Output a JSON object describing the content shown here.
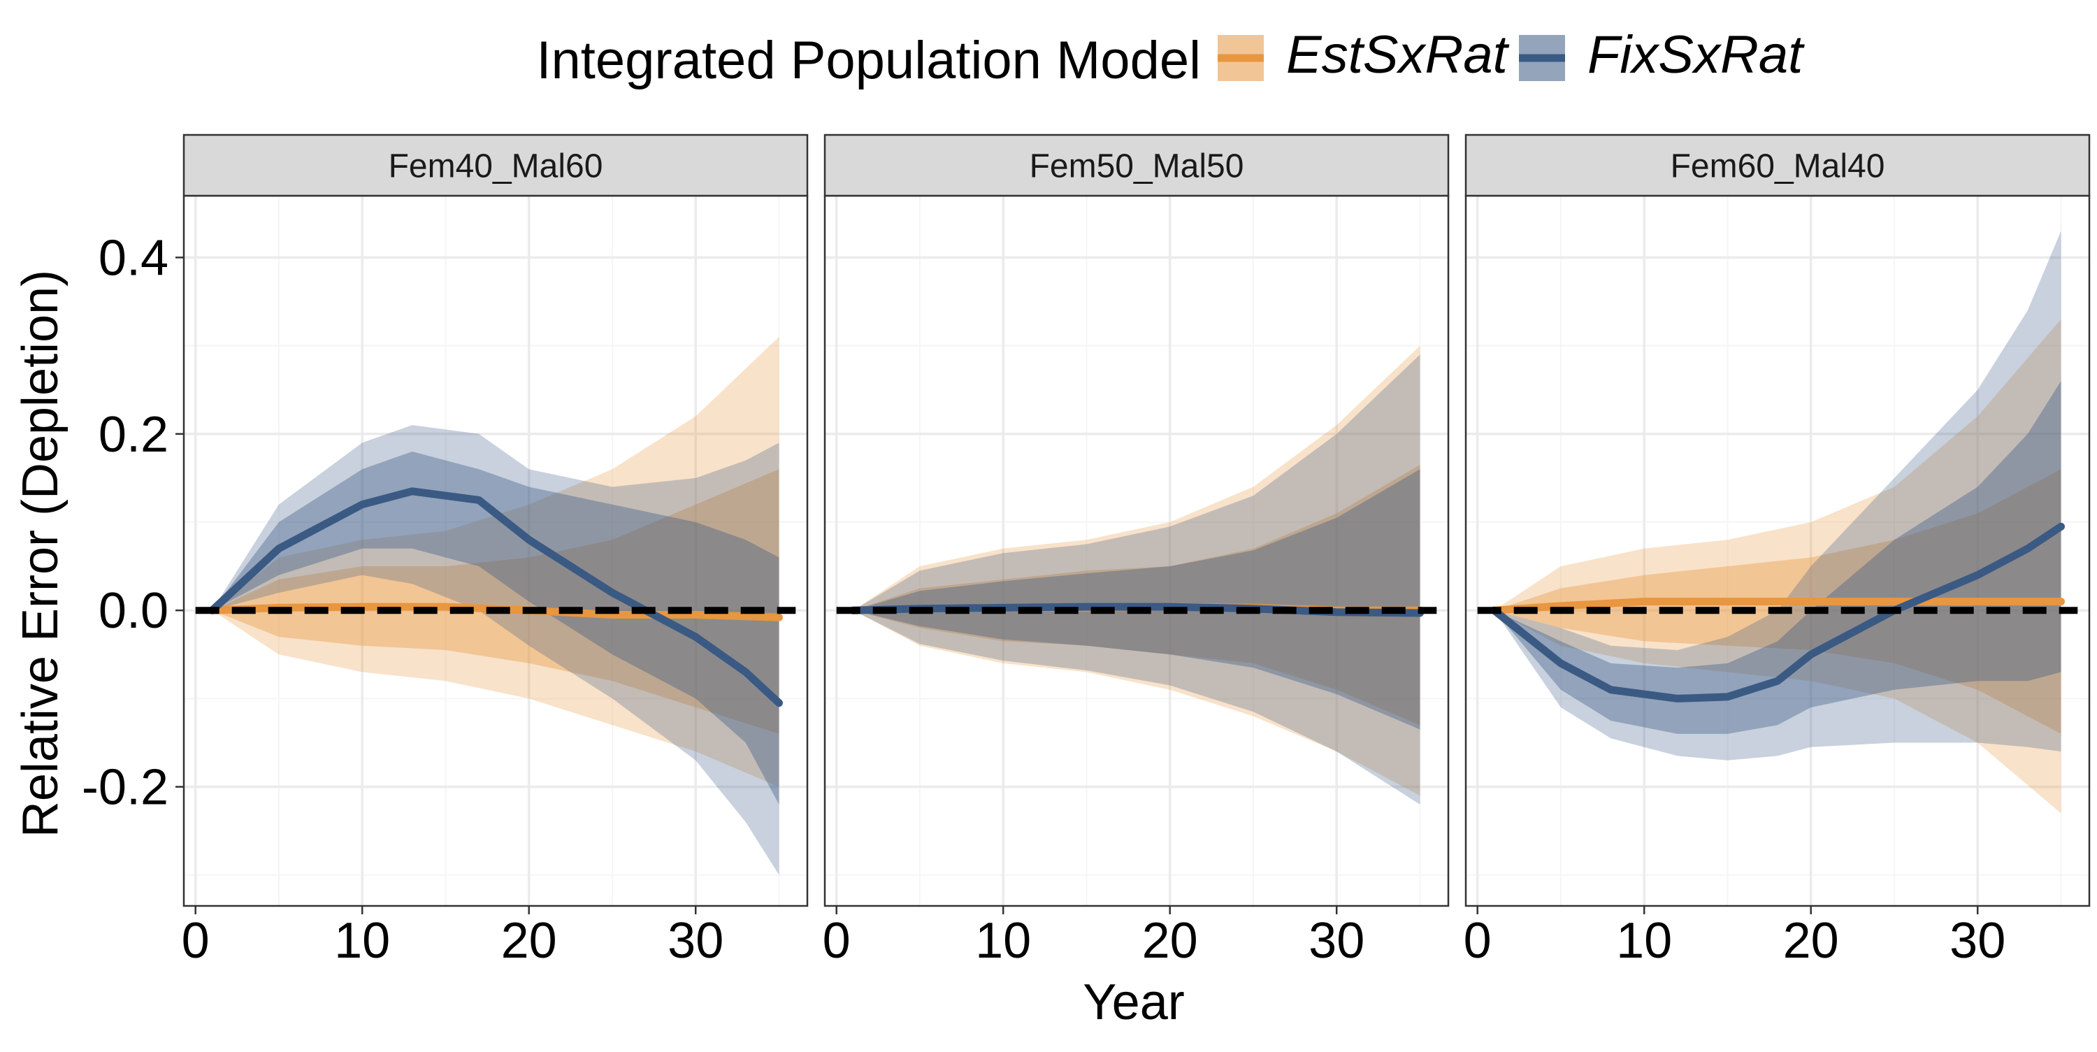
{
  "colors": {
    "EstSxRat": "#E8963F",
    "FixSxRat": "#3A5A84",
    "panel_border": "#333333",
    "strip_fill": "#D9D9D9",
    "grid_major": "#EBEBEB",
    "grid_minor": "#F5F5F5",
    "reference_line": "#000000"
  },
  "chart_data": {
    "type": "line",
    "legend": {
      "title": "Integrated Population Model",
      "entries": [
        "EstSxRat",
        "FixSxRat"
      ],
      "placement": "top"
    },
    "xlabel": "Year",
    "ylabel": "Relative Error (Depletion)",
    "xlim": [
      -0.7,
      36.7
    ],
    "ylim": [
      -0.335,
      0.47
    ],
    "x_ticks": [
      0,
      10,
      20,
      30
    ],
    "x_tick_labels": [
      "0",
      "10",
      "20",
      "30"
    ],
    "y_ticks": [
      -0.2,
      0.0,
      0.2,
      0.4
    ],
    "y_tick_labels": [
      "-0.2",
      "0.0",
      "0.2",
      "0.4"
    ],
    "reference_line": {
      "y": 0,
      "style": "dashed"
    },
    "grid": true,
    "panels": [
      {
        "name": "Fem40_Mal60",
        "series": [
          {
            "name": "EstSxRat",
            "x": [
              1,
              5,
              10,
              15,
              20,
              25,
              30,
              35
            ],
            "median": [
              0.0,
              0.003,
              0.004,
              0.004,
              0.0,
              -0.005,
              -0.005,
              -0.008
            ],
            "inner_low": [
              0.0,
              -0.03,
              -0.04,
              -0.045,
              -0.06,
              -0.08,
              -0.11,
              -0.14
            ],
            "inner_high": [
              0.0,
              0.035,
              0.05,
              0.05,
              0.06,
              0.08,
              0.12,
              0.16
            ],
            "outer_low": [
              0.0,
              -0.05,
              -0.07,
              -0.08,
              -0.1,
              -0.13,
              -0.16,
              -0.2
            ],
            "outer_high": [
              0.0,
              0.06,
              0.08,
              0.09,
              0.12,
              0.16,
              0.22,
              0.31
            ]
          },
          {
            "name": "FixSxRat",
            "x": [
              1,
              5,
              10,
              13,
              17,
              20,
              25,
              30,
              33,
              35
            ],
            "median": [
              0.0,
              0.07,
              0.12,
              0.135,
              0.125,
              0.08,
              0.02,
              -0.03,
              -0.07,
              -0.105
            ],
            "inner_low": [
              0.0,
              0.04,
              0.07,
              0.07,
              0.05,
              0.01,
              -0.05,
              -0.1,
              -0.15,
              -0.22
            ],
            "inner_high": [
              0.0,
              0.1,
              0.16,
              0.18,
              0.16,
              0.14,
              0.12,
              0.1,
              0.08,
              0.06
            ],
            "outer_low": [
              0.0,
              0.02,
              0.04,
              0.03,
              0.0,
              -0.04,
              -0.1,
              -0.17,
              -0.24,
              -0.3
            ],
            "outer_high": [
              0.0,
              0.12,
              0.19,
              0.21,
              0.2,
              0.16,
              0.14,
              0.15,
              0.17,
              0.19
            ]
          }
        ]
      },
      {
        "name": "Fem50_Mal50",
        "series": [
          {
            "name": "EstSxRat",
            "x": [
              1,
              5,
              10,
              15,
              20,
              25,
              30,
              35
            ],
            "median": [
              0.0,
              0.002,
              0.003,
              0.003,
              0.004,
              0.003,
              0.0,
              0.0
            ],
            "inner_low": [
              0.0,
              -0.02,
              -0.035,
              -0.04,
              -0.05,
              -0.06,
              -0.09,
              -0.13
            ],
            "inner_high": [
              0.0,
              0.025,
              0.035,
              0.045,
              0.05,
              0.07,
              0.11,
              0.165
            ],
            "outer_low": [
              0.0,
              -0.04,
              -0.06,
              -0.07,
              -0.09,
              -0.12,
              -0.16,
              -0.21
            ],
            "outer_high": [
              0.0,
              0.05,
              0.07,
              0.08,
              0.1,
              0.14,
              0.21,
              0.3
            ]
          },
          {
            "name": "FixSxRat",
            "x": [
              1,
              5,
              10,
              15,
              20,
              25,
              30,
              35
            ],
            "median": [
              0.0,
              0.002,
              0.003,
              0.004,
              0.004,
              0.002,
              -0.002,
              -0.003
            ],
            "inner_low": [
              0.0,
              -0.018,
              -0.033,
              -0.04,
              -0.05,
              -0.065,
              -0.095,
              -0.135
            ],
            "inner_high": [
              0.0,
              0.022,
              0.033,
              0.042,
              0.05,
              0.068,
              0.105,
              0.16
            ],
            "outer_low": [
              0.0,
              -0.038,
              -0.057,
              -0.068,
              -0.085,
              -0.115,
              -0.16,
              -0.22
            ],
            "outer_high": [
              0.0,
              0.045,
              0.065,
              0.075,
              0.095,
              0.13,
              0.2,
              0.29
            ]
          }
        ]
      },
      {
        "name": "Fem60_Mal40",
        "series": [
          {
            "name": "EstSxRat",
            "x": [
              1,
              5,
              10,
              15,
              20,
              25,
              30,
              35
            ],
            "median": [
              0.0,
              0.005,
              0.01,
              0.01,
              0.01,
              0.01,
              0.01,
              0.01
            ],
            "inner_low": [
              0.0,
              -0.02,
              -0.035,
              -0.04,
              -0.045,
              -0.06,
              -0.09,
              -0.14
            ],
            "inner_high": [
              0.0,
              0.025,
              0.04,
              0.05,
              0.06,
              0.08,
              0.11,
              0.16
            ],
            "outer_low": [
              0.0,
              -0.04,
              -0.06,
              -0.07,
              -0.08,
              -0.1,
              -0.15,
              -0.23
            ],
            "outer_high": [
              0.0,
              0.05,
              0.07,
              0.08,
              0.1,
              0.14,
              0.22,
              0.33
            ]
          },
          {
            "name": "FixSxRat",
            "x": [
              1,
              5,
              8,
              12,
              15,
              18,
              20,
              25,
              30,
              33,
              35
            ],
            "median": [
              0.0,
              -0.06,
              -0.09,
              -0.1,
              -0.098,
              -0.08,
              -0.05,
              0.0,
              0.04,
              0.07,
              0.095
            ],
            "inner_low": [
              0.0,
              -0.09,
              -0.125,
              -0.14,
              -0.14,
              -0.13,
              -0.11,
              -0.09,
              -0.08,
              -0.08,
              -0.07
            ],
            "inner_high": [
              0.0,
              -0.035,
              -0.06,
              -0.065,
              -0.06,
              -0.035,
              0.0,
              0.08,
              0.14,
              0.2,
              0.26
            ],
            "outer_low": [
              0.0,
              -0.11,
              -0.145,
              -0.165,
              -0.17,
              -0.165,
              -0.155,
              -0.15,
              -0.15,
              -0.155,
              -0.16
            ],
            "outer_high": [
              0.0,
              -0.02,
              -0.04,
              -0.045,
              -0.03,
              0.0,
              0.05,
              0.15,
              0.25,
              0.34,
              0.43
            ]
          }
        ]
      }
    ]
  }
}
